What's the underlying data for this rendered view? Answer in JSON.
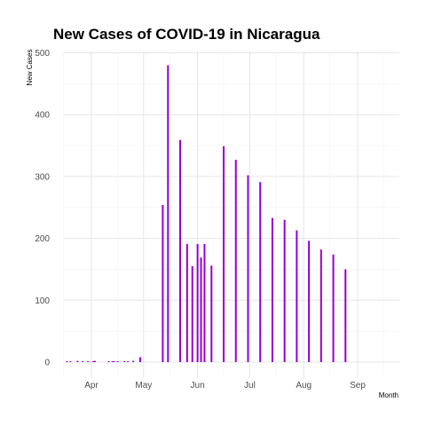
{
  "chart_data": {
    "type": "bar",
    "title": "New Cases of COVID-19 in Nicaragua",
    "xlabel": "Month",
    "ylabel": "New Cases",
    "ylim": [
      0,
      500
    ],
    "y_ticks": [
      "0",
      "100",
      "200",
      "300",
      "400",
      "500"
    ],
    "x_ticks": [
      "Apr",
      "May",
      "Jun",
      "Jul",
      "Aug",
      "Sep"
    ],
    "grid": true,
    "bar_color": "#9400D3",
    "points": [
      {
        "x": "2020-03-18",
        "y": 1
      },
      {
        "x": "2020-03-20",
        "y": 1
      },
      {
        "x": "2020-03-24",
        "y": 2
      },
      {
        "x": "2020-03-27",
        "y": 1
      },
      {
        "x": "2020-03-30",
        "y": 1
      },
      {
        "x": "2020-04-02",
        "y": 1
      },
      {
        "x": "2020-04-03",
        "y": 2
      },
      {
        "x": "2020-04-11",
        "y": 1
      },
      {
        "x": "2020-04-13",
        "y": 1
      },
      {
        "x": "2020-04-14",
        "y": 1
      },
      {
        "x": "2020-04-16",
        "y": 1
      },
      {
        "x": "2020-04-20",
        "y": 1
      },
      {
        "x": "2020-04-22",
        "y": 1
      },
      {
        "x": "2020-04-25",
        "y": 2
      },
      {
        "x": "2020-04-29",
        "y": 8
      },
      {
        "x": "2020-05-12",
        "y": 254
      },
      {
        "x": "2020-05-15",
        "y": 480
      },
      {
        "x": "2020-05-22",
        "y": 359
      },
      {
        "x": "2020-05-26",
        "y": 191
      },
      {
        "x": "2020-05-29",
        "y": 155
      },
      {
        "x": "2020-06-01",
        "y": 191
      },
      {
        "x": "2020-06-03",
        "y": 169
      },
      {
        "x": "2020-06-05",
        "y": 191
      },
      {
        "x": "2020-06-09",
        "y": 156
      },
      {
        "x": "2020-06-16",
        "y": 349
      },
      {
        "x": "2020-06-23",
        "y": 327
      },
      {
        "x": "2020-06-30",
        "y": 302
      },
      {
        "x": "2020-07-07",
        "y": 291
      },
      {
        "x": "2020-07-14",
        "y": 233
      },
      {
        "x": "2020-07-21",
        "y": 230
      },
      {
        "x": "2020-07-28",
        "y": 213
      },
      {
        "x": "2020-08-04",
        "y": 196
      },
      {
        "x": "2020-08-11",
        "y": 182
      },
      {
        "x": "2020-08-18",
        "y": 174
      },
      {
        "x": "2020-08-25",
        "y": 150
      }
    ]
  }
}
